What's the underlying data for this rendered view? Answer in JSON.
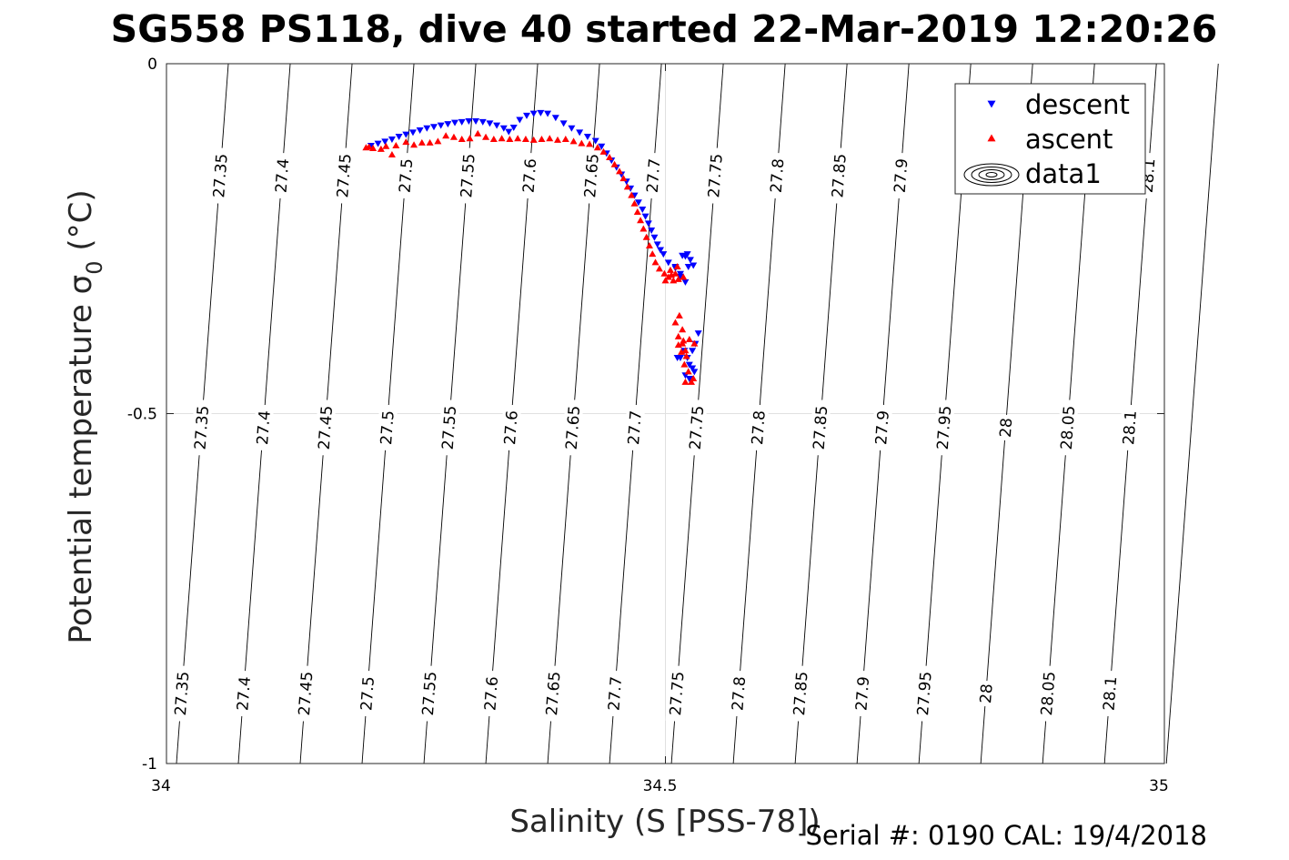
{
  "chart_data": {
    "type": "scatter",
    "title": "SG558 PS118, dive 40 started 22-Mar-2019 12:20:26",
    "xlabel": "Salinity (S [PSS-78])",
    "ylabel": "Potential temperature σ",
    "ylabel_sub": "0",
    "ylabel_unit": " (°C)",
    "xlim": [
      34,
      35
    ],
    "ylim": [
      -1,
      0
    ],
    "x_ticks": [
      {
        "value": 34,
        "label": "34"
      },
      {
        "value": 34.5,
        "label": "34.5"
      },
      {
        "value": 35,
        "label": "35"
      }
    ],
    "y_ticks": [
      {
        "value": 0,
        "label": "0"
      },
      {
        "value": -0.5,
        "label": "-0.5"
      },
      {
        "value": -1,
        "label": "-1"
      }
    ],
    "grid": true,
    "legend_position": "top-right",
    "legend": [
      {
        "label": "descent",
        "marker": "triangle-down",
        "color": "#0000ff"
      },
      {
        "label": "ascent",
        "marker": "triangle-up",
        "color": "#ff0000"
      },
      {
        "label": "data1",
        "marker": "contour",
        "color": "#000000"
      }
    ],
    "density_contours": {
      "levels": [
        {
          "level": 27.35,
          "s_top": 34.062,
          "s_bottom": 34.01,
          "labels": [
            "27.35",
            "27.35",
            "27.35"
          ]
        },
        {
          "level": 27.4,
          "s_top": 34.124,
          "s_bottom": 34.072,
          "labels": [
            "27.4",
            "27.4",
            "27.4"
          ]
        },
        {
          "level": 27.45,
          "s_top": 34.186,
          "s_bottom": 34.134,
          "labels": [
            "27.45",
            "27.45",
            "27.45"
          ]
        },
        {
          "level": 27.5,
          "s_top": 34.248,
          "s_bottom": 34.196,
          "labels": [
            "27.5",
            "27.5",
            "27.5"
          ]
        },
        {
          "level": 27.55,
          "s_top": 34.31,
          "s_bottom": 34.258,
          "labels": [
            "27.55",
            "27.55",
            "27.55"
          ]
        },
        {
          "level": 27.6,
          "s_top": 34.372,
          "s_bottom": 34.32,
          "labels": [
            "27.6",
            "27.6",
            "27.6"
          ]
        },
        {
          "level": 27.65,
          "s_top": 34.434,
          "s_bottom": 34.382,
          "labels": [
            "27.65",
            "27.65",
            "27.65"
          ]
        },
        {
          "level": 27.7,
          "s_top": 34.496,
          "s_bottom": 34.444,
          "labels": [
            "27.7",
            "27.7",
            "27.7"
          ]
        },
        {
          "level": 27.75,
          "s_top": 34.558,
          "s_bottom": 34.506,
          "labels": [
            "27.75",
            "27.75",
            "27.75"
          ]
        },
        {
          "level": 27.8,
          "s_top": 34.62,
          "s_bottom": 34.568,
          "labels": [
            "27.8",
            "27.8",
            "27.8"
          ]
        },
        {
          "level": 27.85,
          "s_top": 34.682,
          "s_bottom": 34.63,
          "labels": [
            "27.85",
            "27.85",
            "27.85"
          ]
        },
        {
          "level": 27.9,
          "s_top": 34.744,
          "s_bottom": 34.692,
          "labels": [
            "27.9",
            "27.9",
            "27.9"
          ]
        },
        {
          "level": 27.95,
          "s_top": 34.806,
          "s_bottom": 34.754,
          "labels": [
            "",
            "27.95",
            "27.95"
          ]
        },
        {
          "level": 28,
          "s_top": 34.868,
          "s_bottom": 34.816,
          "labels": [
            "",
            "28",
            "28"
          ]
        },
        {
          "level": 28.05,
          "s_top": 34.93,
          "s_bottom": 34.878,
          "labels": [
            "",
            "28.05",
            "28.05"
          ]
        },
        {
          "level": 28.1,
          "s_top": 34.992,
          "s_bottom": 34.94,
          "labels": [
            "28.1",
            "28.1",
            "28.1"
          ]
        },
        {
          "level": 28.15,
          "s_top": 35.054,
          "s_bottom": 35.002,
          "labels": [
            "",
            "",
            ""
          ]
        }
      ],
      "label_theta": [
        -0.16,
        -0.52,
        -0.9
      ]
    },
    "series": [
      {
        "name": "descent",
        "marker": "triangle-down",
        "color": "#0000ff",
        "points": [
          [
            34.205,
            -0.117
          ],
          [
            34.212,
            -0.114
          ],
          [
            34.219,
            -0.111
          ],
          [
            34.226,
            -0.108
          ],
          [
            34.233,
            -0.104
          ],
          [
            34.24,
            -0.101
          ],
          [
            34.247,
            -0.098
          ],
          [
            34.254,
            -0.095
          ],
          [
            34.261,
            -0.092
          ],
          [
            34.268,
            -0.09
          ],
          [
            34.275,
            -0.088
          ],
          [
            34.282,
            -0.086
          ],
          [
            34.289,
            -0.084
          ],
          [
            34.296,
            -0.083
          ],
          [
            34.303,
            -0.082
          ],
          [
            34.31,
            -0.082
          ],
          [
            34.317,
            -0.083
          ],
          [
            34.324,
            -0.085
          ],
          [
            34.331,
            -0.088
          ],
          [
            34.338,
            -0.092
          ],
          [
            34.343,
            -0.097
          ],
          [
            34.348,
            -0.091
          ],
          [
            34.354,
            -0.08
          ],
          [
            34.361,
            -0.074
          ],
          [
            34.368,
            -0.071
          ],
          [
            34.375,
            -0.07
          ],
          [
            34.382,
            -0.071
          ],
          [
            34.39,
            -0.077
          ],
          [
            34.398,
            -0.085
          ],
          [
            34.406,
            -0.092
          ],
          [
            34.414,
            -0.098
          ],
          [
            34.422,
            -0.104
          ],
          [
            34.43,
            -0.11
          ],
          [
            34.436,
            -0.118
          ],
          [
            34.441,
            -0.128
          ],
          [
            34.446,
            -0.138
          ],
          [
            34.451,
            -0.148
          ],
          [
            34.456,
            -0.158
          ],
          [
            34.461,
            -0.168
          ],
          [
            34.465,
            -0.178
          ],
          [
            34.469,
            -0.188
          ],
          [
            34.473,
            -0.198
          ],
          [
            34.477,
            -0.208
          ],
          [
            34.48,
            -0.218
          ],
          [
            34.483,
            -0.228
          ],
          [
            34.486,
            -0.238
          ],
          [
            34.489,
            -0.248
          ],
          [
            34.492,
            -0.258
          ],
          [
            34.495,
            -0.266
          ],
          [
            34.498,
            -0.272
          ],
          [
            34.503,
            -0.284
          ],
          [
            34.51,
            -0.292
          ],
          [
            34.515,
            -0.304
          ],
          [
            34.52,
            -0.312
          ],
          [
            34.515,
            -0.3
          ],
          [
            34.51,
            -0.29
          ],
          [
            34.517,
            -0.274
          ],
          [
            34.522,
            -0.272
          ],
          [
            34.52,
            -0.275
          ],
          [
            34.525,
            -0.28
          ],
          [
            34.523,
            -0.29
          ],
          [
            34.528,
            -0.288
          ],
          [
            34.533,
            -0.385
          ],
          [
            34.53,
            -0.4
          ],
          [
            34.527,
            -0.41
          ],
          [
            34.522,
            -0.42
          ],
          [
            34.524,
            -0.43
          ],
          [
            34.527,
            -0.435
          ],
          [
            34.52,
            -0.445
          ],
          [
            34.524,
            -0.45
          ],
          [
            34.529,
            -0.44
          ],
          [
            34.515,
            -0.42
          ],
          [
            34.519,
            -0.41
          ],
          [
            34.512,
            -0.42
          ]
        ]
      },
      {
        "name": "ascent",
        "marker": "triangle-up",
        "color": "#ff0000",
        "points": [
          [
            34.2,
            -0.12
          ],
          [
            34.203,
            -0.119
          ],
          [
            34.207,
            -0.121
          ],
          [
            34.215,
            -0.122
          ],
          [
            34.22,
            -0.118
          ],
          [
            34.226,
            -0.13
          ],
          [
            34.23,
            -0.117
          ],
          [
            34.24,
            -0.112
          ],
          [
            34.248,
            -0.116
          ],
          [
            34.256,
            -0.113
          ],
          [
            34.264,
            -0.113
          ],
          [
            34.272,
            -0.111
          ],
          [
            34.28,
            -0.103
          ],
          [
            34.288,
            -0.105
          ],
          [
            34.296,
            -0.108
          ],
          [
            34.304,
            -0.107
          ],
          [
            34.312,
            -0.1
          ],
          [
            34.32,
            -0.105
          ],
          [
            34.328,
            -0.108
          ],
          [
            34.336,
            -0.107
          ],
          [
            34.344,
            -0.108
          ],
          [
            34.352,
            -0.107
          ],
          [
            34.36,
            -0.108
          ],
          [
            34.368,
            -0.109
          ],
          [
            34.376,
            -0.108
          ],
          [
            34.384,
            -0.107
          ],
          [
            34.392,
            -0.109
          ],
          [
            34.4,
            -0.108
          ],
          [
            34.408,
            -0.111
          ],
          [
            34.416,
            -0.114
          ],
          [
            34.424,
            -0.115
          ],
          [
            34.432,
            -0.12
          ],
          [
            34.438,
            -0.126
          ],
          [
            34.444,
            -0.134
          ],
          [
            34.449,
            -0.144
          ],
          [
            34.454,
            -0.154
          ],
          [
            34.458,
            -0.164
          ],
          [
            34.462,
            -0.176
          ],
          [
            34.466,
            -0.188
          ],
          [
            34.469,
            -0.2
          ],
          [
            34.472,
            -0.212
          ],
          [
            34.475,
            -0.224
          ],
          [
            34.478,
            -0.236
          ],
          [
            34.481,
            -0.248
          ],
          [
            34.484,
            -0.26
          ],
          [
            34.487,
            -0.272
          ],
          [
            34.49,
            -0.284
          ],
          [
            34.494,
            -0.293
          ],
          [
            34.499,
            -0.3
          ],
          [
            34.503,
            -0.305
          ],
          [
            34.508,
            -0.31
          ],
          [
            34.513,
            -0.308
          ],
          [
            34.518,
            -0.305
          ],
          [
            34.512,
            -0.29
          ],
          [
            34.506,
            -0.302
          ],
          [
            34.5,
            -0.31
          ],
          [
            34.51,
            -0.3
          ],
          [
            34.505,
            -0.295
          ],
          [
            34.51,
            -0.37
          ],
          [
            34.514,
            -0.36
          ],
          [
            34.517,
            -0.38
          ],
          [
            34.513,
            -0.39
          ],
          [
            34.517,
            -0.4
          ],
          [
            34.52,
            -0.41
          ],
          [
            34.516,
            -0.412
          ],
          [
            34.521,
            -0.418
          ],
          [
            34.519,
            -0.43
          ],
          [
            34.523,
            -0.44
          ],
          [
            34.526,
            -0.455
          ],
          [
            34.528,
            -0.45
          ],
          [
            34.52,
            -0.455
          ],
          [
            34.529,
            -0.4
          ],
          [
            34.524,
            -0.394
          ],
          [
            34.518,
            -0.396
          ],
          [
            34.513,
            -0.402
          ]
        ]
      }
    ]
  },
  "footer": {
    "serial_text": "Serial #: 0190  CAL: 19/4/2018"
  }
}
